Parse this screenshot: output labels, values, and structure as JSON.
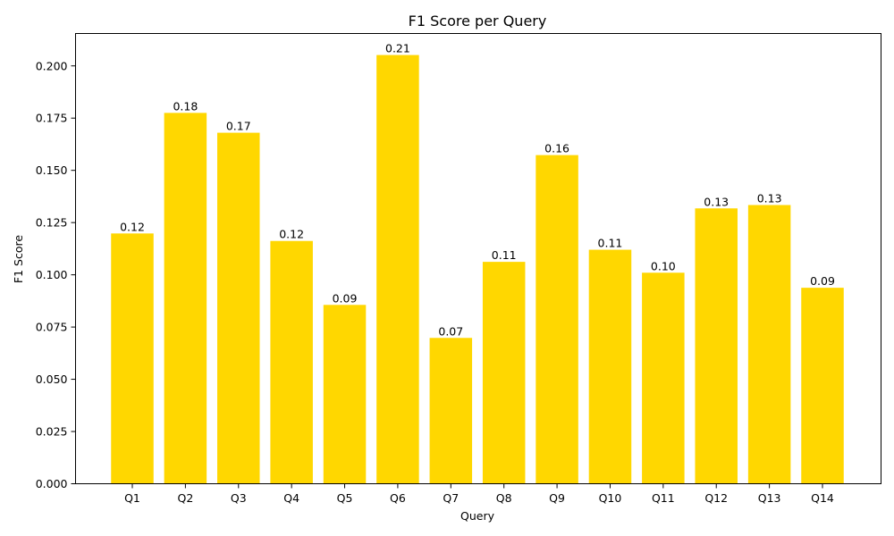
{
  "chart_data": {
    "type": "bar",
    "title": "F1 Score per Query",
    "xlabel": "Query",
    "ylabel": "F1 Score",
    "categories": [
      "Q1",
      "Q2",
      "Q3",
      "Q4",
      "Q5",
      "Q6",
      "Q7",
      "Q8",
      "Q9",
      "Q10",
      "Q11",
      "Q12",
      "Q13",
      "Q14"
    ],
    "values": [
      0.1198,
      0.1775,
      0.168,
      0.1162,
      0.0856,
      0.2052,
      0.0698,
      0.1062,
      0.1573,
      0.112,
      0.101,
      0.1318,
      0.1334,
      0.0938
    ],
    "data_labels": [
      "0.12",
      "0.18",
      "0.17",
      "0.12",
      "0.09",
      "0.21",
      "0.07",
      "0.11",
      "0.16",
      "0.11",
      "0.10",
      "0.13",
      "0.13",
      "0.09"
    ],
    "ylim": [
      0,
      0.2155
    ],
    "yticks": [
      0.0,
      0.025,
      0.05,
      0.075,
      0.1,
      0.125,
      0.15,
      0.175,
      0.2
    ],
    "ytick_labels": [
      "0.000",
      "0.025",
      "0.050",
      "0.075",
      "0.100",
      "0.125",
      "0.150",
      "0.175",
      "0.200"
    ],
    "bar_color": "#FFD700",
    "grid": false,
    "legend": "none"
  }
}
